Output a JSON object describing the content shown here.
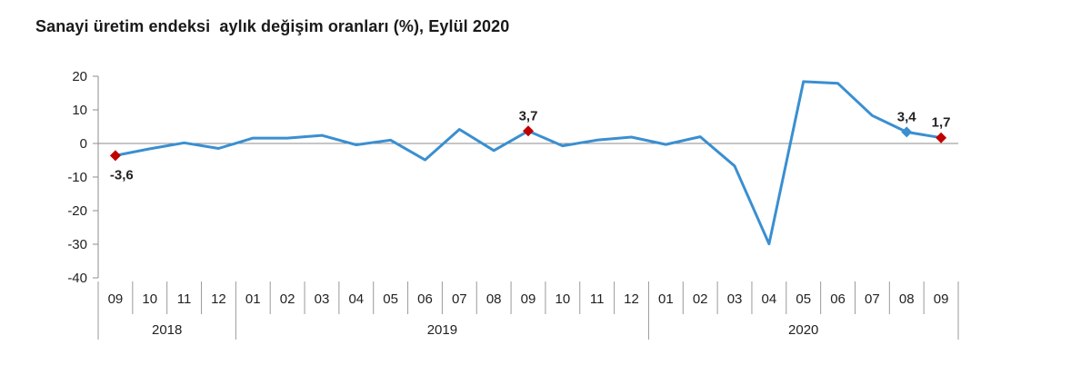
{
  "chart_data": {
    "type": "line",
    "title": "Sanayi üretim endeksi  aylık değişim oranları (%), Eylül 2020",
    "xlabel": "",
    "ylabel": "",
    "ylim": [
      -40,
      20
    ],
    "yticks": [
      "20",
      "10",
      "0",
      "-10",
      "-20",
      "-30",
      "-40"
    ],
    "categories": [
      "09",
      "10",
      "11",
      "12",
      "01",
      "02",
      "03",
      "04",
      "05",
      "06",
      "07",
      "08",
      "09",
      "10",
      "11",
      "12",
      "01",
      "02",
      "03",
      "04",
      "05",
      "06",
      "07",
      "08",
      "09"
    ],
    "year_groups": [
      {
        "label": "2018",
        "count": 4
      },
      {
        "label": "2019",
        "count": 12
      },
      {
        "label": "2020",
        "count": 9
      }
    ],
    "series": [
      {
        "values": [
          -3.6,
          -1.6,
          0.2,
          -1.5,
          1.6,
          1.6,
          2.4,
          -0.4,
          1.0,
          -4.9,
          4.2,
          -2.1,
          3.7,
          -0.7,
          1.0,
          1.9,
          -0.3,
          2.0,
          -6.7,
          -29.9,
          18.4,
          17.9,
          8.3,
          3.4,
          1.7
        ]
      }
    ],
    "annotations": [
      {
        "index": 0,
        "text": "-3,6",
        "marker": "diamond",
        "color": "#c00000",
        "placement": "below-right"
      },
      {
        "index": 12,
        "text": "3,7",
        "marker": "diamond",
        "color": "#c00000",
        "placement": "above"
      },
      {
        "index": 23,
        "text": "3,4",
        "marker": "diamond",
        "color": "#3a8fd1",
        "placement": "above"
      },
      {
        "index": 24,
        "text": "1,7",
        "marker": "diamond",
        "color": "#c00000",
        "placement": "above"
      }
    ],
    "line_color": "#3a8fd1",
    "grid": false
  }
}
